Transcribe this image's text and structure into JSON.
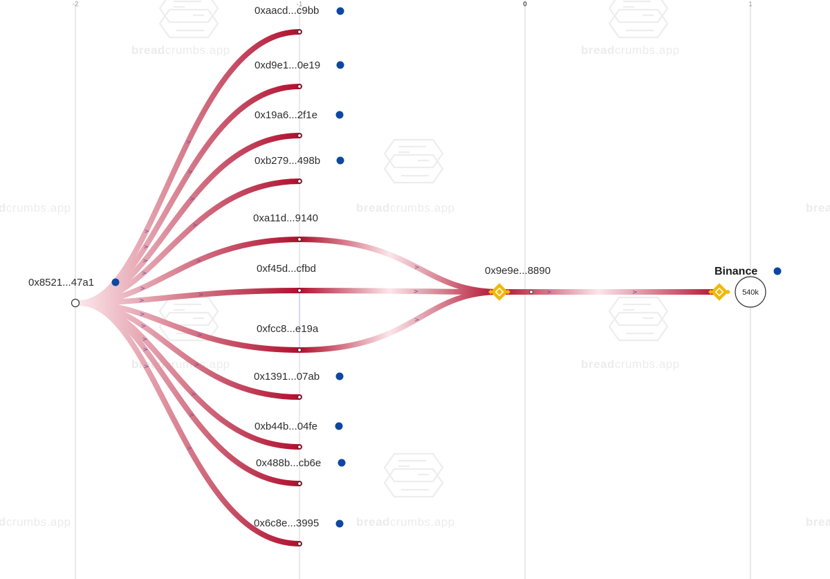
{
  "watermark": {
    "bold": "bread",
    "thin": "crumbs.app"
  },
  "axis_ticks": [
    {
      "label": "-2",
      "bold": false
    },
    {
      "label": "-1",
      "bold": false
    },
    {
      "label": "0",
      "bold": true
    },
    {
      "label": "1",
      "bold": false
    }
  ],
  "source": {
    "label": "0x8521...47a1"
  },
  "hub": {
    "label": "0x9e9e...8890"
  },
  "exchange": {
    "label": "Binance",
    "amount": "540k"
  },
  "intermediates": [
    {
      "label": "0xaacd...c9bb",
      "to_hub": false,
      "has_dot": true
    },
    {
      "label": "0xd9e1...0e19",
      "to_hub": false,
      "has_dot": true
    },
    {
      "label": "0x19a6...2f1e",
      "to_hub": false,
      "has_dot": true
    },
    {
      "label": "0xb279...498b",
      "to_hub": false,
      "has_dot": true
    },
    {
      "label": "0xa11d...9140",
      "to_hub": true,
      "has_dot": false
    },
    {
      "label": "0xf45d...cfbd",
      "to_hub": true,
      "has_dot": false
    },
    {
      "label": "0xfcc8...e19a",
      "to_hub": true,
      "has_dot": false
    },
    {
      "label": "0x1391...07ab",
      "to_hub": false,
      "has_dot": true
    },
    {
      "label": "0xb44b...04fe",
      "to_hub": false,
      "has_dot": true
    },
    {
      "label": "0x488b...cb6e",
      "to_hub": false,
      "has_dot": true
    },
    {
      "label": "0x6c8e...3995",
      "to_hub": false,
      "has_dot": true
    }
  ],
  "colors": {
    "flow": "#b00f2e",
    "flow_faint": "#fbe6ea",
    "node_dot": "#0d47a1",
    "binance_yellow": "#f0b90b",
    "arrow": "#7a4a9a"
  },
  "icons": {
    "exchange_icon": "binance-diamond-icon"
  }
}
